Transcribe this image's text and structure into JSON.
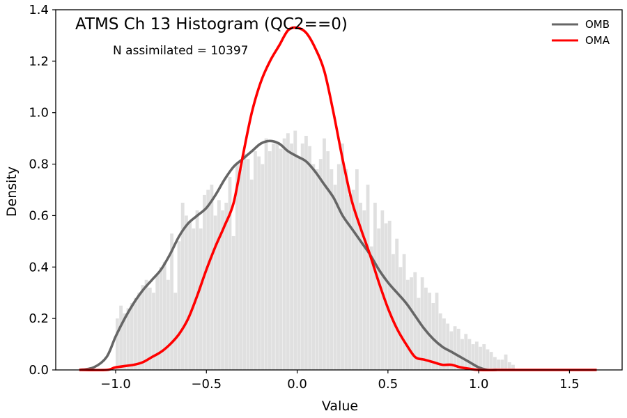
{
  "chart_data": {
    "type": "area",
    "title": "ATMS Ch 13 Histogram (QC2==0)",
    "annotation": "N assimilated = 10397",
    "xlabel": "Value",
    "ylabel": "Density",
    "xlim": [
      -1.33,
      1.79
    ],
    "ylim": [
      0,
      1.4
    ],
    "x_ticks": [
      -1.0,
      -0.5,
      0.0,
      0.5,
      1.0,
      1.5
    ],
    "x_tick_labels": [
      "−1.0",
      "−0.5",
      "0.0",
      "0.5",
      "1.0",
      "1.5"
    ],
    "y_ticks": [
      0.0,
      0.2,
      0.4,
      0.6,
      0.8,
      1.0,
      1.2,
      1.4
    ],
    "y_tick_labels": [
      "0.0",
      "0.2",
      "0.4",
      "0.6",
      "0.8",
      "1.0",
      "1.2",
      "1.4"
    ],
    "grid": false,
    "legend_position": "top-right",
    "histogram": {
      "color": "#e0e0e0",
      "bin_start": -1.0,
      "bin_width": 0.02,
      "densities": [
        0.2,
        0.25,
        0.22,
        0.24,
        0.26,
        0.28,
        0.3,
        0.33,
        0.35,
        0.32,
        0.3,
        0.37,
        0.4,
        0.42,
        0.35,
        0.53,
        0.3,
        0.5,
        0.65,
        0.6,
        0.58,
        0.55,
        0.62,
        0.55,
        0.68,
        0.7,
        0.72,
        0.6,
        0.66,
        0.62,
        0.65,
        0.75,
        0.52,
        0.8,
        0.78,
        0.84,
        0.82,
        0.74,
        0.85,
        0.83,
        0.8,
        0.9,
        0.85,
        0.88,
        0.88,
        0.86,
        0.9,
        0.92,
        0.88,
        0.93,
        0.83,
        0.88,
        0.91,
        0.87,
        0.8,
        0.78,
        0.82,
        0.9,
        0.85,
        0.78,
        0.72,
        0.8,
        0.88,
        0.78,
        0.68,
        0.7,
        0.78,
        0.65,
        0.62,
        0.72,
        0.48,
        0.65,
        0.55,
        0.62,
        0.57,
        0.58,
        0.45,
        0.51,
        0.4,
        0.45,
        0.35,
        0.36,
        0.38,
        0.28,
        0.36,
        0.32,
        0.3,
        0.26,
        0.3,
        0.22,
        0.2,
        0.18,
        0.15,
        0.17,
        0.16,
        0.12,
        0.14,
        0.12,
        0.1,
        0.11,
        0.09,
        0.1,
        0.08,
        0.07,
        0.05,
        0.04,
        0.04,
        0.06,
        0.03,
        0.02
      ]
    },
    "series": [
      {
        "name": "OMB",
        "color": "#666666",
        "x": [
          -1.2,
          -1.12,
          -1.05,
          -1.0,
          -0.95,
          -0.9,
          -0.85,
          -0.8,
          -0.75,
          -0.7,
          -0.65,
          -0.6,
          -0.55,
          -0.5,
          -0.45,
          -0.4,
          -0.35,
          -0.3,
          -0.25,
          -0.2,
          -0.15,
          -0.1,
          -0.05,
          0.0,
          0.05,
          0.1,
          0.15,
          0.2,
          0.25,
          0.3,
          0.35,
          0.4,
          0.45,
          0.5,
          0.55,
          0.6,
          0.65,
          0.7,
          0.75,
          0.8,
          0.85,
          0.9,
          0.95,
          1.0,
          1.05,
          1.1
        ],
        "values": [
          0.0,
          0.01,
          0.05,
          0.13,
          0.2,
          0.26,
          0.31,
          0.35,
          0.39,
          0.45,
          0.52,
          0.57,
          0.6,
          0.63,
          0.68,
          0.74,
          0.79,
          0.82,
          0.85,
          0.88,
          0.89,
          0.88,
          0.85,
          0.83,
          0.81,
          0.77,
          0.72,
          0.67,
          0.6,
          0.55,
          0.5,
          0.45,
          0.39,
          0.34,
          0.3,
          0.26,
          0.21,
          0.16,
          0.12,
          0.09,
          0.07,
          0.05,
          0.03,
          0.01,
          0.0,
          0.0
        ]
      },
      {
        "name": "OMA",
        "color": "#ff0000",
        "x": [
          -1.2,
          -1.05,
          -1.0,
          -0.9,
          -0.85,
          -0.8,
          -0.75,
          -0.7,
          -0.65,
          -0.6,
          -0.55,
          -0.5,
          -0.45,
          -0.4,
          -0.35,
          -0.3,
          -0.25,
          -0.2,
          -0.15,
          -0.1,
          -0.05,
          0.0,
          0.05,
          0.1,
          0.15,
          0.2,
          0.25,
          0.3,
          0.35,
          0.4,
          0.45,
          0.5,
          0.55,
          0.6,
          0.65,
          0.7,
          0.75,
          0.8,
          0.85,
          0.9,
          1.0,
          1.1,
          1.2,
          1.3,
          1.4,
          1.5,
          1.65
        ],
        "values": [
          0.0,
          0.0,
          0.01,
          0.02,
          0.03,
          0.05,
          0.07,
          0.1,
          0.14,
          0.2,
          0.29,
          0.39,
          0.48,
          0.56,
          0.65,
          0.83,
          1.0,
          1.12,
          1.2,
          1.26,
          1.32,
          1.33,
          1.31,
          1.25,
          1.16,
          1.0,
          0.82,
          0.66,
          0.55,
          0.45,
          0.34,
          0.24,
          0.16,
          0.1,
          0.05,
          0.04,
          0.03,
          0.02,
          0.02,
          0.01,
          0.0,
          0.0,
          0.0,
          0.0,
          0.0,
          0.0,
          0.0
        ]
      }
    ]
  }
}
